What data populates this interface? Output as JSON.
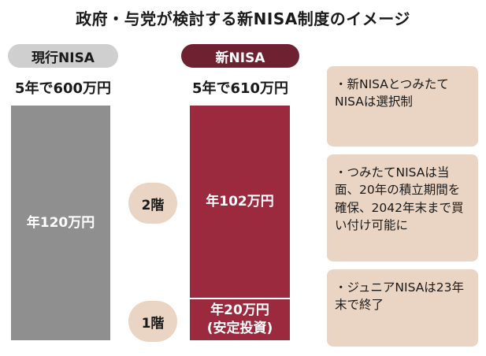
{
  "title": "政府・与党が検討する新NISA制度のイメージ",
  "current": {
    "label": "現行NISA",
    "total": "5年で600万円",
    "bar_label": "年120万円"
  },
  "new": {
    "label": "新NISA",
    "total": "5年で610万円",
    "tier2_floor": "2階",
    "tier2_label": "年102万円",
    "tier1_floor": "1階",
    "tier1_label": "年20万円",
    "tier1_sublabel": "(安定投資)"
  },
  "notes": [
    {
      "text": "・新NISAとつみたてNISAは選択制"
    },
    {
      "text": "・つみたてNISAは当面、20年の積立期間を確保、2042年末まで買い付け可能に"
    },
    {
      "text": "・ジュニアNISAは23年末で終了"
    }
  ],
  "colors": {
    "current_bar": "#8f8f8f",
    "new_bar": "#9b2a3e",
    "new_pill": "#6e2231",
    "current_pill": "#cfcfcf",
    "note_bg": "#ead4c3"
  }
}
